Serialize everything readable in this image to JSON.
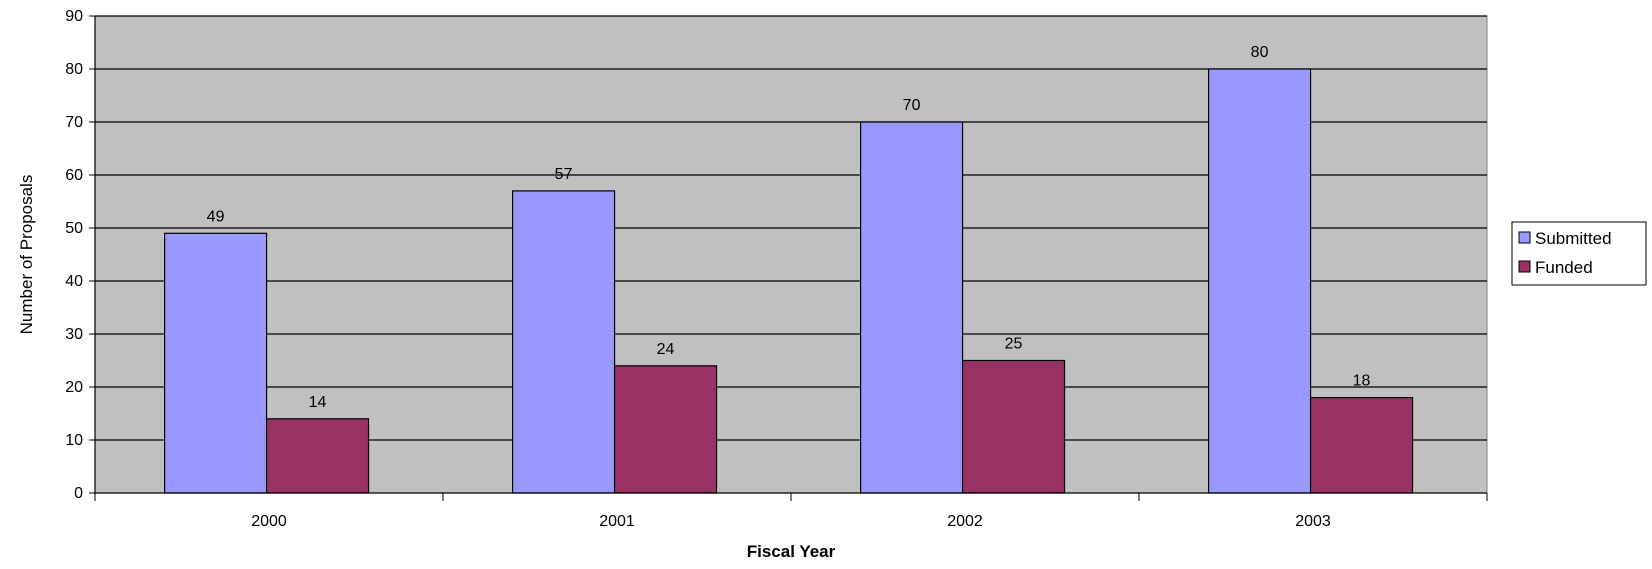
{
  "chart_data": {
    "type": "bar",
    "title": "",
    "xlabel": "Fiscal Year",
    "ylabel": "Number of Proposals",
    "categories": [
      "2000",
      "2001",
      "2002",
      "2003"
    ],
    "ylim": [
      0,
      90
    ],
    "yticks": [
      0,
      10,
      20,
      30,
      40,
      50,
      60,
      70,
      80,
      90
    ],
    "grid": true,
    "legend_position": "right",
    "plot_background": "#c0c0c0",
    "series": [
      {
        "name": "Submitted",
        "color": "#9999ff",
        "values": [
          49,
          57,
          70,
          80
        ]
      },
      {
        "name": "Funded",
        "color": "#993366",
        "values": [
          14,
          24,
          25,
          18
        ]
      }
    ]
  }
}
